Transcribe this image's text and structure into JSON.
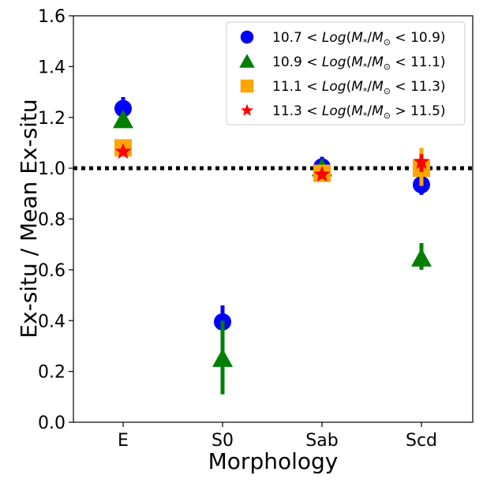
{
  "chart_data": {
    "type": "scatter",
    "xlabel": "Morphology",
    "ylabel": "Ex-situ / Mean Ex-situ",
    "categories": [
      "E",
      "S0",
      "Sab",
      "Scd"
    ],
    "ylim": [
      0.0,
      1.6
    ],
    "yticks": [
      "0.0",
      "0.2",
      "0.4",
      "0.6",
      "0.8",
      "1.0",
      "1.2",
      "1.4",
      "1.6"
    ],
    "reference_line": {
      "y": 1.0,
      "style": "dotted",
      "color": "#000000"
    },
    "legend_position": "top-right",
    "series": [
      {
        "name": "10.7 < Log(M*/M⊙ < 10.9)",
        "legend_label": "$10.7 < Log(M_*/M_\\odot < 10.9)$",
        "marker": "circle",
        "color": "#0000ff",
        "values": [
          1.235,
          0.395,
          1.005,
          0.935
        ],
        "err_low": [
          0.03,
          0.03,
          0.02,
          0.04
        ],
        "err_high": [
          0.045,
          0.065,
          0.04,
          0.04
        ]
      },
      {
        "name": "10.9 < Log(M*/M⊙ < 11.1)",
        "legend_label": "$10.9 < Log(M_*/M_\\odot < 11.1)$",
        "marker": "triangle",
        "color": "#008000",
        "values": [
          1.19,
          0.25,
          1.0,
          0.645
        ],
        "err_low": [
          0.02,
          0.14,
          0.02,
          0.045
        ],
        "err_high": [
          0.02,
          0.15,
          0.02,
          0.06
        ]
      },
      {
        "name": "11.1 < Log(M*/M⊙ < 11.3)",
        "legend_label": "$11.1 < Log(M_*/M_\\odot < 11.3)$",
        "marker": "square",
        "color": "#ffa500",
        "values": [
          1.08,
          null,
          0.98,
          1.0
        ],
        "err_low": [
          0.02,
          0,
          0.02,
          0.07
        ],
        "err_high": [
          0.02,
          0,
          0.02,
          0.08
        ]
      },
      {
        "name": "11.3 < Log(M*/M⊙ > 11.5)",
        "legend_label": "$11.3 < Log(M_*/M_\\odot > 11.5)$",
        "marker": "star",
        "color": "#ff0000",
        "values": [
          1.065,
          null,
          0.975,
          1.025
        ],
        "err_low": [
          0.015,
          0,
          0.015,
          0.04
        ],
        "err_high": [
          0.015,
          0,
          0.015,
          0.03
        ]
      }
    ]
  }
}
